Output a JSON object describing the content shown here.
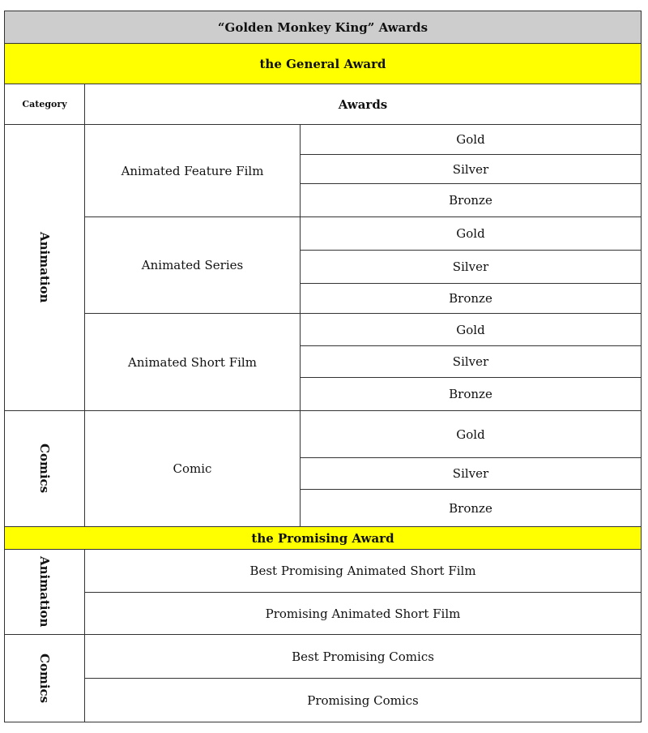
{
  "title": "“Golden Monkey King” Awards",
  "general": {
    "heading": "the General Award",
    "category_header": "Category",
    "awards_header": "Awards",
    "categories": [
      {
        "name": "Animation",
        "awards": [
          {
            "name": "Animated Feature Film",
            "levels": [
              "Gold",
              "Silver",
              "Bronze"
            ]
          },
          {
            "name": "Animated Series",
            "levels": [
              "Gold",
              "Silver",
              "Bronze"
            ]
          },
          {
            "name": "Animated Short Film",
            "levels": [
              "Gold",
              "Silver",
              "Bronze"
            ]
          }
        ]
      },
      {
        "name": "Comics",
        "awards": [
          {
            "name": "Comic",
            "levels": [
              "Gold",
              "Silver",
              "Bronze"
            ]
          }
        ]
      }
    ]
  },
  "promising": {
    "heading": "the Promising Award",
    "categories": [
      {
        "name": "Animation",
        "awards": [
          "Best Promising Animated Short Film",
          "Promising Animated Short Film"
        ]
      },
      {
        "name": "Comics",
        "awards": [
          "Best Promising Comics",
          "Promising Comics"
        ]
      }
    ]
  },
  "colors": {
    "title_bg": "#cdcdcd",
    "section_bg": "#ffff00"
  }
}
